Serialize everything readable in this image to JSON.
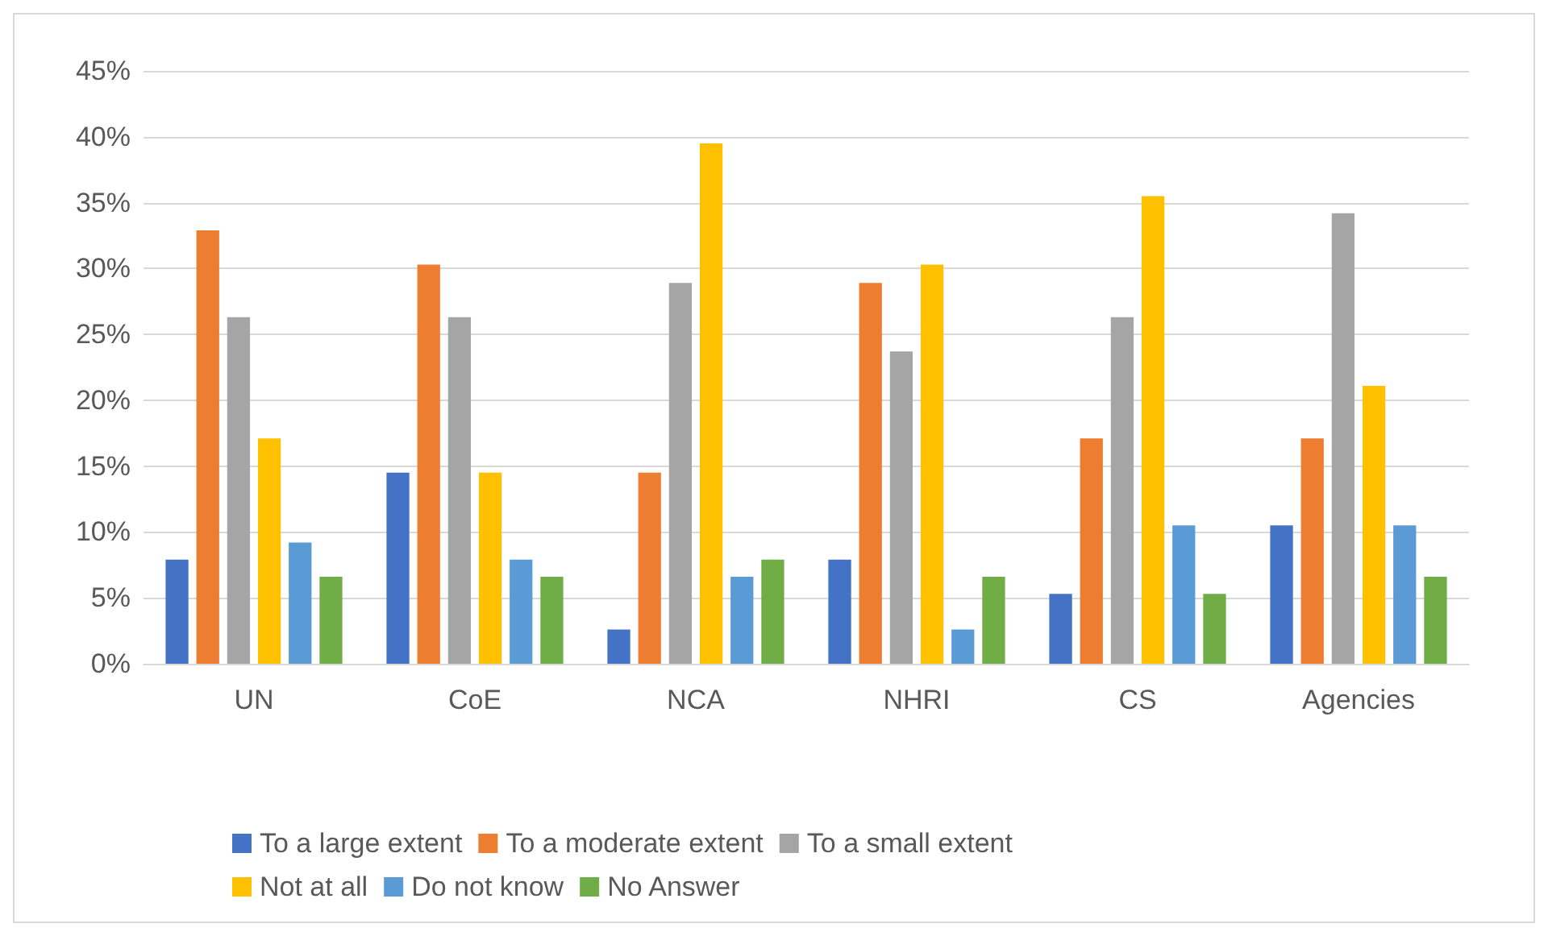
{
  "chart_data": {
    "type": "bar",
    "categories": [
      "UN",
      "CoE",
      "NCA",
      "NHRI",
      "CS",
      "Agencies"
    ],
    "series": [
      {
        "name": "To a large extent",
        "color": "#4472c4",
        "values": [
          7.9,
          14.5,
          2.6,
          7.9,
          5.3,
          10.5
        ]
      },
      {
        "name": "To a moderate extent",
        "color": "#ed7d31",
        "values": [
          32.9,
          30.3,
          14.5,
          28.9,
          17.1,
          17.1
        ]
      },
      {
        "name": "To a small extent",
        "color": "#a5a5a5",
        "values": [
          26.3,
          26.3,
          28.9,
          23.7,
          26.3,
          34.2
        ]
      },
      {
        "name": "Not at all",
        "color": "#ffc000",
        "values": [
          17.1,
          14.5,
          39.5,
          30.3,
          35.5,
          21.1
        ]
      },
      {
        "name": "Do not know",
        "color": "#5b9bd5",
        "values": [
          9.2,
          7.9,
          6.6,
          2.6,
          10.5,
          10.5
        ]
      },
      {
        "name": "No Answer",
        "color": "#70ad47",
        "values": [
          6.6,
          6.6,
          7.9,
          6.6,
          5.3,
          6.6
        ]
      }
    ],
    "ylim": [
      0,
      45
    ],
    "yticks": [
      {
        "value": 0,
        "label": "0%"
      },
      {
        "value": 5,
        "label": "5%"
      },
      {
        "value": 10,
        "label": "10%"
      },
      {
        "value": 15,
        "label": "15%"
      },
      {
        "value": 20,
        "label": "20%"
      },
      {
        "value": 25,
        "label": "25%"
      },
      {
        "value": 30,
        "label": "30%"
      },
      {
        "value": 35,
        "label": "35%"
      },
      {
        "value": 40,
        "label": "40%"
      },
      {
        "value": 45,
        "label": "45%"
      }
    ],
    "grid": "y",
    "legend": "bottom"
  }
}
